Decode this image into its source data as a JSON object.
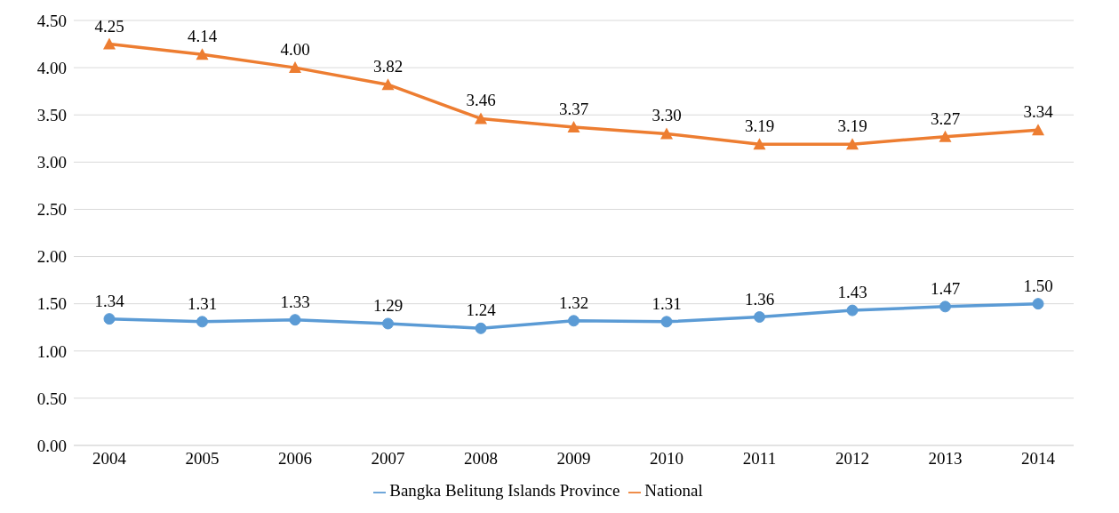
{
  "chart_data": {
    "type": "line",
    "categories": [
      "2004",
      "2005",
      "2006",
      "2007",
      "2008",
      "2009",
      "2010",
      "2011",
      "2012",
      "2013",
      "2014"
    ],
    "series": [
      {
        "name": "Bangka Belitung Islands Province",
        "color": "#5b9bd5",
        "marker": "circle",
        "values": [
          1.34,
          1.31,
          1.33,
          1.29,
          1.24,
          1.32,
          1.31,
          1.36,
          1.43,
          1.47,
          1.5
        ],
        "value_labels": [
          "1.34",
          "1.31",
          "1.33",
          "1.29",
          "1.24",
          "1.32",
          "1.31",
          "1.36",
          "1.43",
          "1.47",
          "1.50"
        ]
      },
      {
        "name": "National",
        "color": "#ed7d31",
        "marker": "triangle",
        "values": [
          4.25,
          4.14,
          4.0,
          3.82,
          3.46,
          3.37,
          3.3,
          3.19,
          3.19,
          3.27,
          3.34
        ],
        "value_labels": [
          "4.25",
          "4.14",
          "4.00",
          "3.82",
          "3.46",
          "3.37",
          "3.30",
          "3.19",
          "3.19",
          "3.27",
          "3.34"
        ]
      }
    ],
    "ylim": [
      0,
      4.5
    ],
    "yticks": [
      {
        "value": 0,
        "label": "0.00"
      },
      {
        "value": 0.5,
        "label": "0.50"
      },
      {
        "value": 1,
        "label": "1.00"
      },
      {
        "value": 1.5,
        "label": "1.50"
      },
      {
        "value": 2,
        "label": "2.00"
      },
      {
        "value": 2.5,
        "label": "2.50"
      },
      {
        "value": 3,
        "label": "3.00"
      },
      {
        "value": 3.5,
        "label": "3.50"
      },
      {
        "value": 4,
        "label": "4.00"
      },
      {
        "value": 4.5,
        "label": "4.50"
      }
    ],
    "grid": "y",
    "legend": "bottom",
    "line_style": "solid"
  }
}
